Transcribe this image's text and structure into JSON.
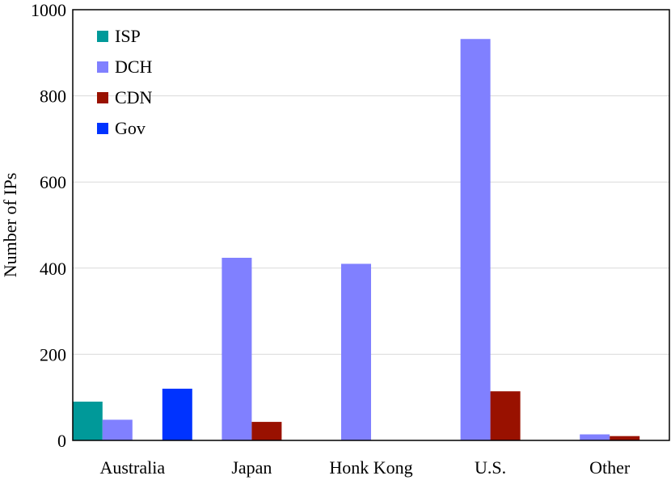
{
  "chart_data": {
    "type": "bar",
    "title": "",
    "xlabel": "",
    "ylabel": "Number of IPs",
    "ylim": [
      0,
      1000
    ],
    "yticks": [
      0,
      200,
      400,
      600,
      800,
      1000
    ],
    "grid": true,
    "legend_position": "top-left",
    "categories": [
      "Australia",
      "Japan",
      "Honk Kong",
      "U.S.",
      "Other"
    ],
    "series": [
      {
        "name": "ISP",
        "color": "#009999",
        "values": [
          90,
          0,
          0,
          0,
          0
        ]
      },
      {
        "name": "DCH",
        "color": "#8080ff",
        "values": [
          48,
          424,
          410,
          932,
          14
        ]
      },
      {
        "name": "CDN",
        "color": "#991100",
        "values": [
          0,
          43,
          0,
          114,
          10
        ]
      },
      {
        "name": "Gov",
        "color": "#0033ff",
        "values": [
          120,
          0,
          0,
          0,
          0
        ]
      }
    ]
  }
}
